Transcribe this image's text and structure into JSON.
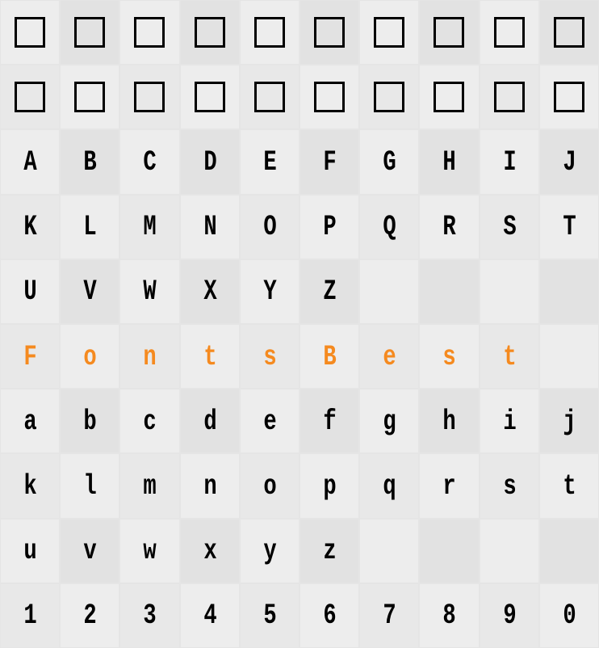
{
  "grid": {
    "columns": 10,
    "rows": 10,
    "cell_bg_a": "#e8e8e8",
    "cell_bg_b": "#e2e2e2",
    "page_bg": "#e5e5e5",
    "text_color": "#000000",
    "highlight_color": "#f58a1f",
    "box_border_color": "#000000",
    "box_border_width": 3,
    "box_size": 38,
    "font_family": "Courier New",
    "font_size": 32,
    "font_weight": "bold"
  },
  "cells": [
    {
      "type": "box"
    },
    {
      "type": "box"
    },
    {
      "type": "box"
    },
    {
      "type": "box"
    },
    {
      "type": "box"
    },
    {
      "type": "box"
    },
    {
      "type": "box"
    },
    {
      "type": "box"
    },
    {
      "type": "box"
    },
    {
      "type": "box"
    },
    {
      "type": "box"
    },
    {
      "type": "box"
    },
    {
      "type": "box"
    },
    {
      "type": "box"
    },
    {
      "type": "box"
    },
    {
      "type": "box"
    },
    {
      "type": "box"
    },
    {
      "type": "box"
    },
    {
      "type": "box"
    },
    {
      "type": "box"
    },
    {
      "type": "char",
      "val": "A"
    },
    {
      "type": "char",
      "val": "B"
    },
    {
      "type": "char",
      "val": "C"
    },
    {
      "type": "char",
      "val": "D"
    },
    {
      "type": "char",
      "val": "E"
    },
    {
      "type": "char",
      "val": "F"
    },
    {
      "type": "char",
      "val": "G"
    },
    {
      "type": "char",
      "val": "H"
    },
    {
      "type": "char",
      "val": "I"
    },
    {
      "type": "char",
      "val": "J"
    },
    {
      "type": "char",
      "val": "K"
    },
    {
      "type": "char",
      "val": "L"
    },
    {
      "type": "char",
      "val": "M"
    },
    {
      "type": "char",
      "val": "N"
    },
    {
      "type": "char",
      "val": "O"
    },
    {
      "type": "char",
      "val": "P"
    },
    {
      "type": "char",
      "val": "Q"
    },
    {
      "type": "char",
      "val": "R"
    },
    {
      "type": "char",
      "val": "S"
    },
    {
      "type": "char",
      "val": "T"
    },
    {
      "type": "char",
      "val": "U"
    },
    {
      "type": "char",
      "val": "V"
    },
    {
      "type": "char",
      "val": "W"
    },
    {
      "type": "char",
      "val": "X"
    },
    {
      "type": "char",
      "val": "Y"
    },
    {
      "type": "char",
      "val": "Z"
    },
    {
      "type": "empty"
    },
    {
      "type": "empty"
    },
    {
      "type": "empty"
    },
    {
      "type": "empty"
    },
    {
      "type": "char",
      "val": "F",
      "hl": true
    },
    {
      "type": "char",
      "val": "o",
      "hl": true
    },
    {
      "type": "char",
      "val": "n",
      "hl": true
    },
    {
      "type": "char",
      "val": "t",
      "hl": true
    },
    {
      "type": "char",
      "val": "s",
      "hl": true
    },
    {
      "type": "char",
      "val": "B",
      "hl": true
    },
    {
      "type": "char",
      "val": "e",
      "hl": true
    },
    {
      "type": "char",
      "val": "s",
      "hl": true
    },
    {
      "type": "char",
      "val": "t",
      "hl": true
    },
    {
      "type": "empty"
    },
    {
      "type": "char",
      "val": "a"
    },
    {
      "type": "char",
      "val": "b"
    },
    {
      "type": "char",
      "val": "c"
    },
    {
      "type": "char",
      "val": "d"
    },
    {
      "type": "char",
      "val": "e"
    },
    {
      "type": "char",
      "val": "f"
    },
    {
      "type": "char",
      "val": "g"
    },
    {
      "type": "char",
      "val": "h"
    },
    {
      "type": "char",
      "val": "i"
    },
    {
      "type": "char",
      "val": "j"
    },
    {
      "type": "char",
      "val": "k"
    },
    {
      "type": "char",
      "val": "l"
    },
    {
      "type": "char",
      "val": "m"
    },
    {
      "type": "char",
      "val": "n"
    },
    {
      "type": "char",
      "val": "o"
    },
    {
      "type": "char",
      "val": "p"
    },
    {
      "type": "char",
      "val": "q"
    },
    {
      "type": "char",
      "val": "r"
    },
    {
      "type": "char",
      "val": "s"
    },
    {
      "type": "char",
      "val": "t"
    },
    {
      "type": "char",
      "val": "u"
    },
    {
      "type": "char",
      "val": "v"
    },
    {
      "type": "char",
      "val": "w"
    },
    {
      "type": "char",
      "val": "x"
    },
    {
      "type": "char",
      "val": "y"
    },
    {
      "type": "char",
      "val": "z"
    },
    {
      "type": "empty"
    },
    {
      "type": "empty"
    },
    {
      "type": "empty"
    },
    {
      "type": "empty"
    },
    {
      "type": "char",
      "val": "1"
    },
    {
      "type": "char",
      "val": "2"
    },
    {
      "type": "char",
      "val": "3"
    },
    {
      "type": "char",
      "val": "4"
    },
    {
      "type": "char",
      "val": "5"
    },
    {
      "type": "char",
      "val": "6"
    },
    {
      "type": "char",
      "val": "7"
    },
    {
      "type": "char",
      "val": "8"
    },
    {
      "type": "char",
      "val": "9"
    },
    {
      "type": "char",
      "val": "0"
    }
  ]
}
